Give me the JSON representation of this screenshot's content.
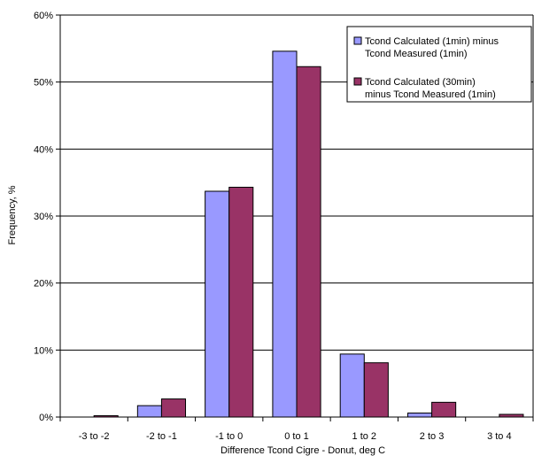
{
  "chart_data": {
    "type": "bar",
    "categories": [
      "-3 to -2",
      "-2 to -1",
      "-1 to 0",
      "0 to 1",
      "1 to 2",
      "2 to 3",
      "3 to 4"
    ],
    "series": [
      {
        "name": "Tcond Calculated (1min) minus Tcond Measured (1min)",
        "legend_lines": [
          "Tcond Calculated (1min) minus",
          "Tcond Measured (1min)"
        ],
        "color": "#9999ff",
        "values": [
          0.0,
          1.7,
          33.7,
          54.6,
          9.4,
          0.6,
          0.0
        ]
      },
      {
        "name": "Tcond Calculated (30min) minus Tcond Measured (1min)",
        "legend_lines": [
          "Tcond Calculated (30min)",
          "minus Tcond Measured (1min)"
        ],
        "color": "#993366",
        "values": [
          0.2,
          2.7,
          34.3,
          52.3,
          8.1,
          2.2,
          0.4
        ]
      }
    ],
    "xlabel": "Difference Tcond Cigre - Donut, deg C",
    "ylabel": "Frequency, %",
    "ylim": [
      0,
      60
    ],
    "yticks": [
      0,
      10,
      20,
      30,
      40,
      50,
      60
    ],
    "ytick_labels": [
      "0%",
      "10%",
      "20%",
      "30%",
      "40%",
      "50%",
      "60%"
    ],
    "grid": "y-major",
    "legend_position": "top-right"
  }
}
